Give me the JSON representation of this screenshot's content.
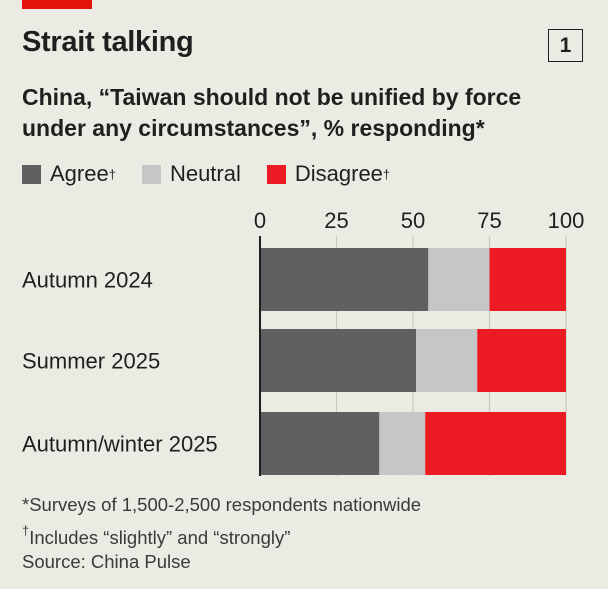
{
  "header": {
    "title": "Strait talking",
    "chart_number": "1",
    "subtitle": "China, “Taiwan should not be unified by force under any circumstances”, % responding*"
  },
  "colors": {
    "agree": "#606062",
    "neutral": "#c5c6c6",
    "disagree": "#ec1b23",
    "accent": "#e3120b",
    "grid": "#c9c8bf"
  },
  "chart_data": {
    "type": "bar",
    "orientation": "horizontal-stacked",
    "title": "Strait talking",
    "categories": [
      "Autumn 2024",
      "Summer 2025",
      "Autumn/winter 2025"
    ],
    "series": [
      {
        "name": "Agree",
        "mark": "†",
        "values": [
          55,
          51,
          39
        ]
      },
      {
        "name": "Neutral",
        "mark": "",
        "values": [
          20,
          20,
          15
        ]
      },
      {
        "name": "Disagree",
        "mark": "†",
        "values": [
          25,
          29,
          46
        ]
      }
    ],
    "xlim": [
      0,
      100
    ],
    "xticks": [
      "0",
      "25",
      "50",
      "75",
      "100"
    ],
    "grid": true,
    "legend": "top-left"
  },
  "footnotes": {
    "note1": "*Surveys of 1,500-2,500 respondents nationwide",
    "note2_mark": "†",
    "note2": "Includes “slightly” and “strongly”",
    "source": "Source: China Pulse"
  }
}
